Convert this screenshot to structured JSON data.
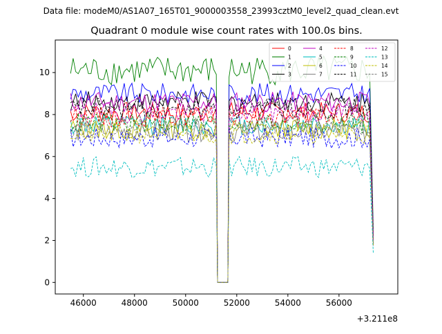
{
  "chart_data": {
    "type": "line",
    "suptitle": "Data file: modeM0/AS1A07_165T01_9000003558_23993cztM0_level2_quad_clean.evt",
    "title": "Quadrant 0 module wise count rates with 100.0s bins.",
    "xlabel": "",
    "ylabel": "",
    "x_offset_label": "+3.211e8",
    "xlim": [
      44900,
      58300
    ],
    "ylim": [
      -0.55,
      11.55
    ],
    "x_ticks": [
      46000,
      48000,
      50000,
      52000,
      54000,
      56000
    ],
    "x_tick_labels": [
      "46000",
      "48000",
      "50000",
      "52000",
      "54000",
      "56000"
    ],
    "y_ticks": [
      0,
      2,
      4,
      6,
      8,
      10
    ],
    "y_tick_labels": [
      "0",
      "2",
      "4",
      "6",
      "8",
      "10"
    ],
    "grid": false,
    "legend_position": "top-right",
    "bin_size_s": 100,
    "segments": [
      {
        "x_start": 45500,
        "x_end": 51200
      },
      {
        "x_start": 51700,
        "x_end": 57300
      }
    ],
    "gap": {
      "x_start": 51250,
      "x_end": 51650,
      "value": 0
    },
    "series": [
      {
        "name": "0",
        "color": "#ff0000",
        "dash": "solid",
        "mean": 8.1
      },
      {
        "name": "1",
        "color": "#008000",
        "dash": "solid",
        "mean": 10.1
      },
      {
        "name": "2",
        "color": "#0000ff",
        "dash": "solid",
        "mean": 9.0
      },
      {
        "name": "3",
        "color": "#000000",
        "dash": "solid",
        "mean": 8.6
      },
      {
        "name": "4",
        "color": "#bf00bf",
        "dash": "solid",
        "mean": 8.6
      },
      {
        "name": "5",
        "color": "#00bfbf",
        "dash": "solid",
        "mean": 7.5
      },
      {
        "name": "6",
        "color": "#bfbf00",
        "dash": "solid",
        "mean": 7.3
      },
      {
        "name": "7",
        "color": "#808080",
        "dash": "solid",
        "mean": 7.2
      },
      {
        "name": "8",
        "color": "#ff0000",
        "dash": "dashed",
        "mean": 7.9
      },
      {
        "name": "9",
        "color": "#008000",
        "dash": "dashed",
        "mean": 7.6
      },
      {
        "name": "10",
        "color": "#0000ff",
        "dash": "dashed",
        "mean": 6.9
      },
      {
        "name": "11",
        "color": "#000000",
        "dash": "dashed",
        "mean": 8.3
      },
      {
        "name": "12",
        "color": "#bf00bf",
        "dash": "dashed",
        "mean": 8.1
      },
      {
        "name": "13",
        "color": "#00bfbf",
        "dash": "dashed",
        "mean": 5.5
      },
      {
        "name": "14",
        "color": "#bfbf00",
        "dash": "dashed",
        "mean": 7.1
      },
      {
        "name": "15",
        "color": "#808080",
        "dash": "dashed",
        "mean": 7.4
      }
    ]
  }
}
